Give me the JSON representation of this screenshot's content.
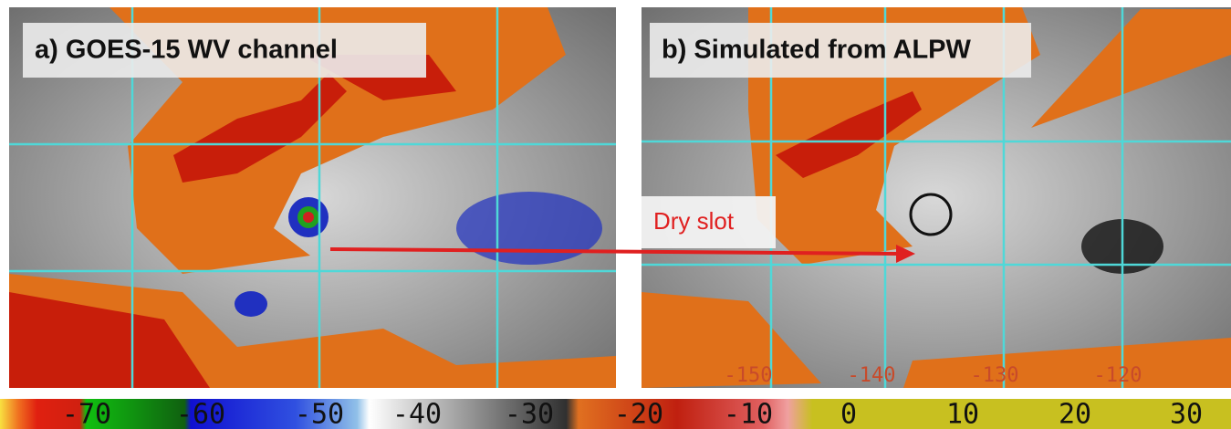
{
  "panels": [
    {
      "label": "a) GOES-15 WV channel"
    },
    {
      "label": "b) Simulated from ALPW",
      "annotation": "Dry slot",
      "lon_labels": [
        "-150",
        "-140",
        "-130",
        "-120"
      ]
    }
  ],
  "colorbar": {
    "ticks": [
      "-70",
      "-60",
      "-50",
      "-40",
      "-30",
      "-20",
      "-10",
      "0",
      "10",
      "20",
      "30"
    ]
  }
}
